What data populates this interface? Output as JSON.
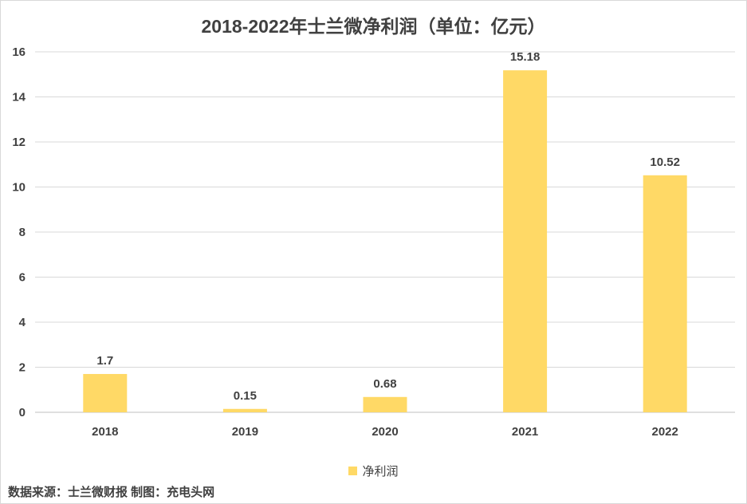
{
  "chart_data": {
    "type": "bar",
    "title": "2018-2022年士兰微净利润（单位：亿元）",
    "categories": [
      "2018",
      "2019",
      "2020",
      "2021",
      "2022"
    ],
    "series": [
      {
        "name": "净利润",
        "values": [
          1.7,
          0.15,
          0.68,
          15.18,
          10.52
        ],
        "labels": [
          "1.7",
          "0.15",
          "0.68",
          "15.18",
          "10.52"
        ]
      }
    ],
    "ylim": [
      0,
      16
    ],
    "yticks": [
      0,
      2,
      4,
      6,
      8,
      10,
      12,
      14,
      16
    ],
    "grid": true,
    "legend_position": "bottom",
    "bar_color": "#ffd966"
  },
  "footer": {
    "source": "数据来源：士兰微财报  制图：充电头网"
  }
}
